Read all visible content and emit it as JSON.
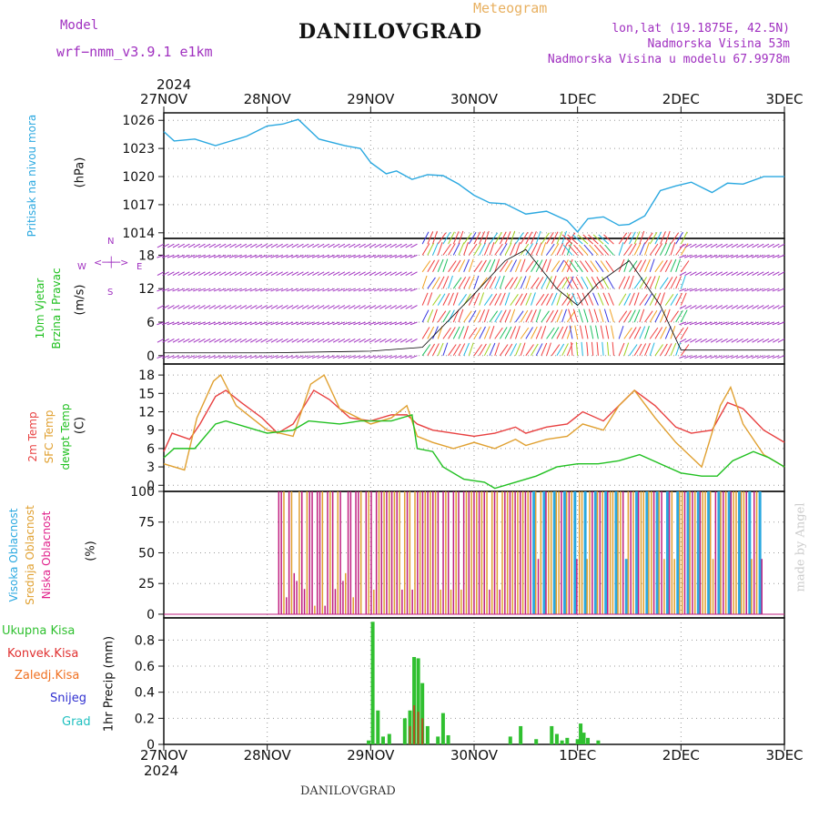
{
  "header": {
    "model_label": "Model",
    "model_name": "wrf−nmm_v3.9.1  e1km",
    "title": "DANILOVGRAD",
    "meteogram_label": "Meteogram",
    "lonlat": "lon,lat (19.1875E, 42.5N)",
    "elevation": "Nadmorska Visina 53m",
    "model_elevation": "Nadmorska Visina u modelu 67.9978m"
  },
  "footer": {
    "station": "DANILOVGRAD",
    "year": "2024",
    "credit": "made by Angel"
  },
  "colors": {
    "pressure": "#2aa8e0",
    "purple": "#a030c0",
    "temp2m": "#e84040",
    "sfc": "#e0a030",
    "dewpt": "#20c020",
    "rain": "#30c030",
    "conv": "#e03030",
    "strat": "#f07020",
    "snow": "#3030d0",
    "hail": "#20c0c0"
  },
  "chart_data": [
    {
      "type": "line",
      "panel": "pressure",
      "label_main": "Pritisak na nivou mora",
      "unit": "(hPa)",
      "x_labels": [
        "27NOV",
        "28NOV",
        "29NOV",
        "30NOV",
        "1DEC",
        "2DEC",
        "3DEC"
      ],
      "x_year": "2024",
      "yticks": [
        1014,
        1017,
        1020,
        1023,
        1026
      ],
      "ylim": [
        1013.4,
        1026.8
      ],
      "x": [
        0,
        0.1,
        0.3,
        0.5,
        0.8,
        1.0,
        1.15,
        1.3,
        1.5,
        1.75,
        1.9,
        2.0,
        2.15,
        2.25,
        2.4,
        2.55,
        2.7,
        2.85,
        3.0,
        3.15,
        3.3,
        3.5,
        3.7,
        3.9,
        4.0,
        4.1,
        4.25,
        4.4,
        4.5,
        4.65,
        4.8,
        4.95,
        5.1,
        5.3,
        5.45,
        5.6,
        5.8,
        6.0
      ],
      "y": [
        1024.8,
        1023.8,
        1024.0,
        1023.3,
        1024.3,
        1025.4,
        1025.6,
        1026.1,
        1024.0,
        1023.3,
        1023.0,
        1021.5,
        1020.3,
        1020.6,
        1019.7,
        1020.2,
        1020.1,
        1019.2,
        1018.0,
        1017.2,
        1017.1,
        1016.0,
        1016.3,
        1015.3,
        1014.1,
        1015.5,
        1015.7,
        1014.8,
        1014.9,
        1015.8,
        1018.5,
        1019.0,
        1019.4,
        1018.3,
        1019.3,
        1019.2,
        1020.0,
        1020.0
      ]
    },
    {
      "type": "barbs",
      "panel": "wind",
      "label_main": "10m Vjetar",
      "label_sub": "Brzina i Pravac",
      "unit": "(m/s)",
      "compass": {
        "n": "N",
        "s": "S",
        "w": "W",
        "e": "E"
      },
      "yticks": [
        0,
        6,
        12,
        18
      ],
      "ylim": [
        -1.5,
        21
      ],
      "levels": [
        0,
        3,
        6,
        9,
        12,
        15,
        18,
        20
      ],
      "speed_lines": [
        {
          "x": [
            0,
            1,
            2,
            2.5,
            3.0,
            3.3,
            3.5,
            3.8,
            4.0,
            4.2,
            4.5,
            4.8,
            5.0,
            6.0
          ],
          "y": [
            0.5,
            0.5,
            0.8,
            1.5,
            11,
            17,
            19,
            12,
            9,
            13,
            17,
            9,
            1,
            1
          ]
        }
      ]
    },
    {
      "type": "line",
      "panel": "temperature",
      "labels": [
        "2m Temp",
        "SFC Temp",
        "dewpt Temp"
      ],
      "unit": "(C)",
      "yticks": [
        0,
        3,
        6,
        9,
        12,
        15,
        18
      ],
      "ylim": [
        -1,
        19.8
      ],
      "series": [
        {
          "name": "2m Temp",
          "x": [
            0,
            0.08,
            0.25,
            0.35,
            0.5,
            0.6,
            0.75,
            0.95,
            1.1,
            1.25,
            1.45,
            1.6,
            1.8,
            2.0,
            2.2,
            2.35,
            2.45,
            2.6,
            2.8,
            3.0,
            3.2,
            3.4,
            3.5,
            3.7,
            3.9,
            4.05,
            4.25,
            4.4,
            4.55,
            4.75,
            4.95,
            5.1,
            5.3,
            5.45,
            5.6,
            5.8,
            6.0
          ],
          "y": [
            5.5,
            8.5,
            7.5,
            10,
            14.5,
            15.5,
            13.5,
            11,
            8.5,
            10,
            15.5,
            14,
            11,
            10.5,
            11.5,
            11.5,
            10,
            9,
            8.5,
            8,
            8.5,
            9.5,
            8.5,
            9.5,
            10,
            12,
            10.5,
            13,
            15.5,
            13,
            9.5,
            8.5,
            9,
            13.5,
            12.5,
            9,
            7
          ]
        },
        {
          "name": "SFC Temp",
          "x": [
            0,
            0.2,
            0.32,
            0.48,
            0.55,
            0.7,
            1.0,
            1.25,
            1.42,
            1.55,
            1.7,
            2.0,
            2.2,
            2.35,
            2.45,
            2.6,
            2.8,
            3.0,
            3.2,
            3.4,
            3.5,
            3.7,
            3.9,
            4.05,
            4.25,
            4.4,
            4.55,
            4.75,
            4.95,
            5.2,
            5.38,
            5.48,
            5.6,
            5.8,
            6.0
          ],
          "y": [
            3.5,
            2.5,
            11,
            17,
            18,
            13,
            9,
            8,
            16.5,
            18,
            12.5,
            10,
            11,
            13,
            8,
            7,
            6,
            7,
            6,
            7.5,
            6.5,
            7.5,
            8,
            10,
            9,
            13,
            15.5,
            11,
            7,
            3,
            13,
            16,
            10,
            5,
            3
          ]
        },
        {
          "name": "dewpt Temp",
          "x": [
            0,
            0.1,
            0.3,
            0.5,
            0.6,
            0.8,
            1.0,
            1.25,
            1.4,
            1.7,
            1.9,
            2.2,
            2.4,
            2.45,
            2.6,
            2.7,
            2.9,
            3.1,
            3.2,
            3.4,
            3.6,
            3.8,
            4.0,
            4.2,
            4.4,
            4.6,
            4.8,
            5.0,
            5.2,
            5.35,
            5.5,
            5.7,
            5.85,
            6.0
          ],
          "y": [
            4.5,
            6,
            6,
            10,
            10.5,
            9.5,
            8.5,
            9,
            10.5,
            10,
            10.5,
            10.5,
            11.5,
            6,
            5.5,
            3,
            1,
            0.5,
            -0.5,
            0.5,
            1.5,
            3,
            3.5,
            3.5,
            4,
            5,
            3.5,
            2,
            1.5,
            1.5,
            4,
            5.5,
            4.5,
            3
          ]
        }
      ]
    },
    {
      "type": "bar",
      "panel": "cloud",
      "labels": [
        "Visoka Oblacnost",
        "Srednja Oblacnost",
        "Niska Oblacnost"
      ],
      "unit": "(%)",
      "yticks": [
        0,
        25,
        50,
        75,
        100
      ],
      "ylim": [
        -3,
        100
      ],
      "note": "Dense vertical bars of high/medium/low cloud cover, mostly 0 or 100 % between 28NOV and 2DEC"
    },
    {
      "type": "bar",
      "panel": "precip",
      "labels": [
        "Ukupna Kisa",
        "Konvek.Kisa",
        "Zaledj.Kisa",
        "Snijeg",
        "Grad"
      ],
      "unit": "1hr Precip (mm)",
      "yticks": [
        0,
        0.2,
        0.4,
        0.6,
        0.8
      ],
      "ylim": [
        0,
        0.97
      ],
      "x": [
        1.98,
        2.02,
        2.07,
        2.12,
        2.18,
        2.33,
        2.38,
        2.42,
        2.46,
        2.5,
        2.55,
        2.65,
        2.7,
        2.75,
        3.35,
        3.45,
        3.6,
        3.75,
        3.8,
        3.85,
        3.9,
        4.0,
        4.03,
        4.06,
        4.1,
        4.2
      ],
      "total": [
        0.03,
        0.94,
        0.26,
        0.06,
        0.08,
        0.2,
        0.26,
        0.67,
        0.66,
        0.47,
        0.14,
        0.06,
        0.24,
        0.07,
        0.06,
        0.14,
        0.04,
        0.14,
        0.08,
        0.03,
        0.05,
        0.04,
        0.16,
        0.09,
        0.05,
        0.03
      ],
      "strat": [
        0,
        0,
        0,
        0,
        0,
        0,
        0.14,
        0.3,
        0.25,
        0.2,
        0,
        0,
        0,
        0,
        0,
        0,
        0,
        0,
        0,
        0,
        0,
        0,
        0,
        0,
        0,
        0
      ]
    }
  ]
}
